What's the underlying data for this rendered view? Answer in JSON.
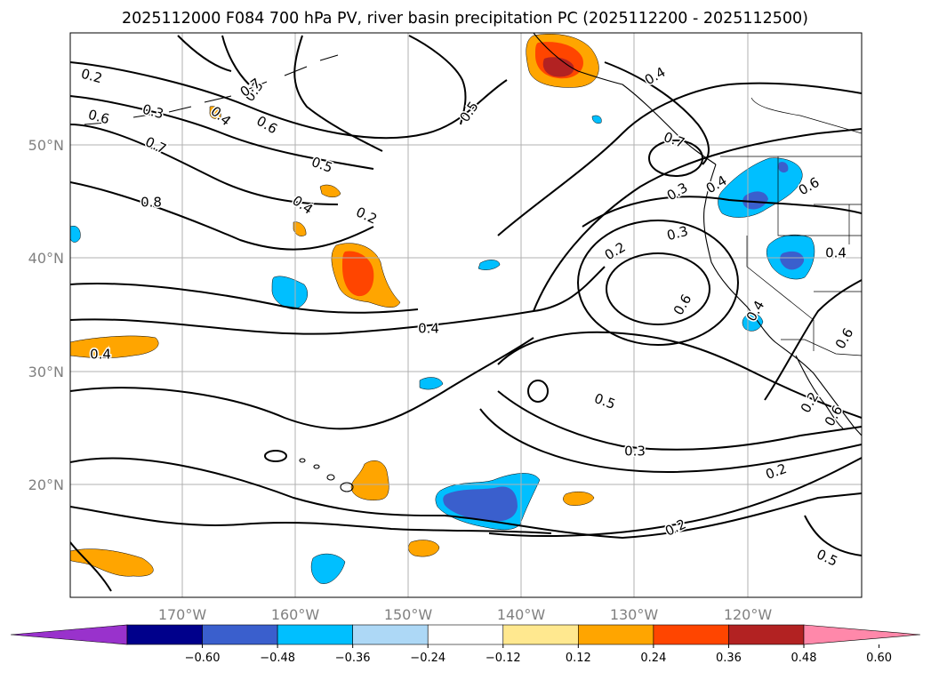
{
  "title": "2025112000 F084 700 hPa PV, river basin precipitation PC (2025112200 - 2025112500)",
  "map": {
    "lon_labels": [
      "170°W",
      "160°W",
      "150°W",
      "140°W",
      "130°W",
      "120°W"
    ],
    "lat_labels": [
      "50°N",
      "40°N",
      "30°N",
      "20°N"
    ]
  },
  "contour_labels": [
    "0.2",
    "0.3",
    "0.6",
    "0.7",
    "0.8",
    "0.5",
    "0.4",
    "0.2",
    "0.4",
    "0.4",
    "0.6",
    "0.5",
    "0.4",
    "0.7",
    "0.3",
    "0.4",
    "0.6",
    "0.3",
    "0.2",
    "0.6",
    "0.5",
    "0.3",
    "0.2",
    "0.2",
    "0.5",
    "0.4",
    "0.4",
    "0.3",
    "0.6",
    "0.6",
    "0.2",
    "0.4",
    "0.7"
  ],
  "colorbar": {
    "ticks": [
      "−0.60",
      "−0.48",
      "−0.36",
      "−0.24",
      "−0.12",
      "0.12",
      "0.24",
      "0.36",
      "0.48",
      "0.60"
    ],
    "colors": [
      "#9932cc",
      "#00008b",
      "#3a5fcd",
      "#00bfff",
      "#add8f6",
      "#ffffff",
      "#ffe88f",
      "#ffa500",
      "#ff4500",
      "#b22222",
      "#ff88aa"
    ]
  },
  "shading_colors": {
    "neg_1": "#00bfff",
    "neg_2": "#3a5fcd",
    "pos_1": "#ffa500",
    "pos_2": "#ff4500",
    "pos_3": "#b22222"
  }
}
